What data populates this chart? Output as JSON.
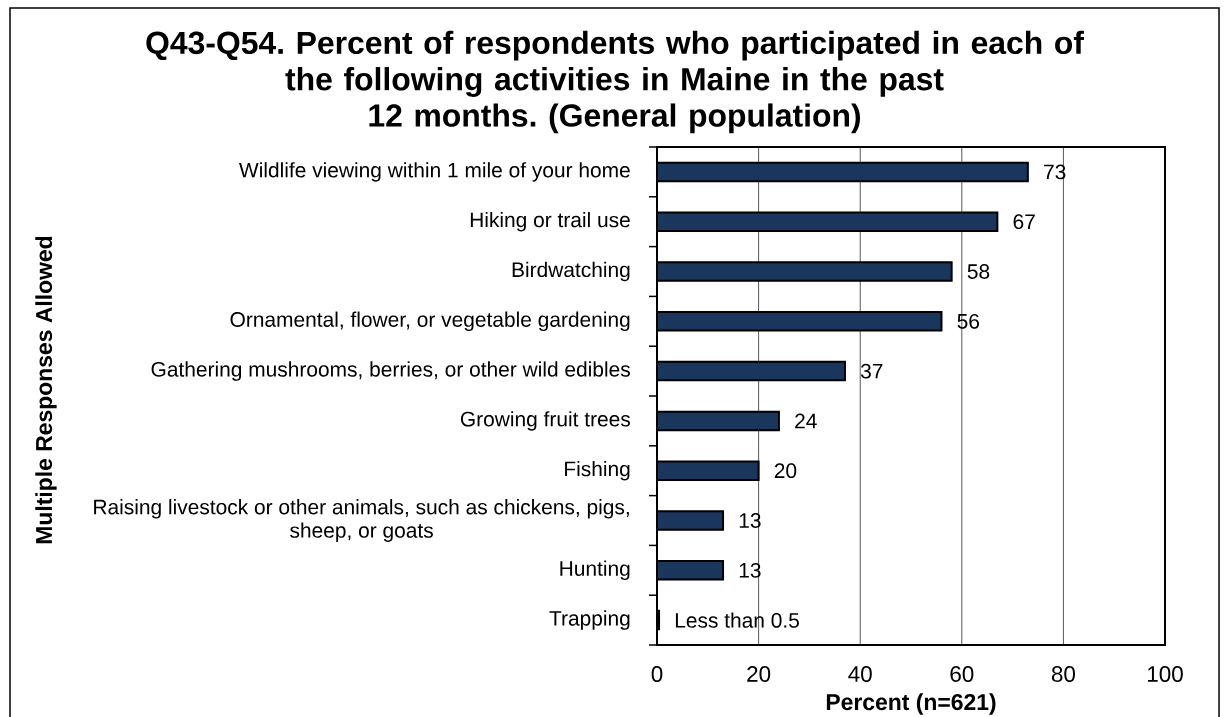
{
  "chart_data": {
    "type": "bar",
    "orientation": "horizontal",
    "title": "Q43-Q54. Percent of respondents who participated in each of the following activities in Maine in the past 12 months. (General population)",
    "xlabel": "Percent (n=621)",
    "ylabel": "Multiple Responses Allowed",
    "categories": [
      "Wildlife viewing within 1 mile of your home",
      "Hiking or trail use",
      "Birdwatching",
      "Ornamental, flower, or vegetable gardening",
      "Gathering mushrooms, berries, or other wild edibles",
      "Growing fruit trees",
      "Fishing",
      "Raising livestock or other animals, such as chickens, pigs, sheep, or goats",
      "Hunting",
      "Trapping"
    ],
    "values": [
      73,
      67,
      58,
      56,
      37,
      24,
      20,
      13,
      13,
      0.4
    ],
    "value_labels": [
      "73",
      "67",
      "58",
      "56",
      "37",
      "24",
      "20",
      "13",
      "13",
      "Less than 0.5"
    ],
    "color": "#1b365d",
    "xlim": [
      0,
      100
    ],
    "xticks": [
      0,
      20,
      40,
      60,
      80,
      100
    ],
    "grid": "x"
  }
}
